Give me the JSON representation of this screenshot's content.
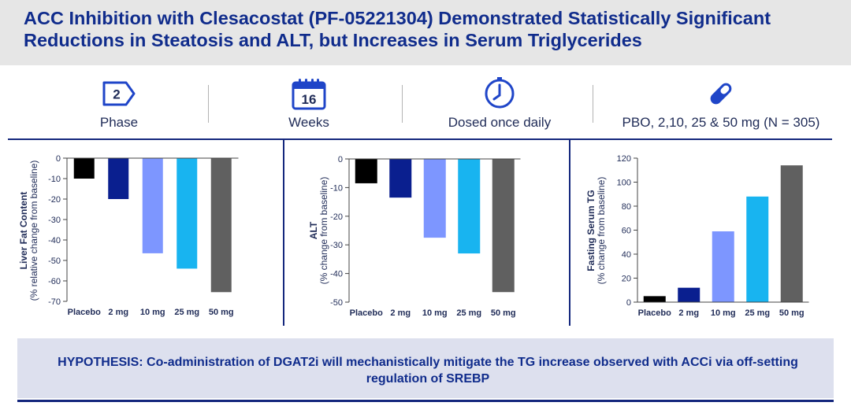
{
  "title": "ACC Inhibition with Clesacostat (PF-05221304) Demonstrated Statistically Significant Reductions in Steatosis and ALT, but Increases in Serum Triglycerides",
  "info": {
    "phase_value": "2",
    "phase_label": "Phase",
    "weeks_value": "16",
    "weeks_label": "Weeks",
    "dosing_label": "Dosed once daily",
    "groups_label": "PBO, 2,10, 25 & 50 mg (N = 305)"
  },
  "colors": {
    "title": "#102c8c",
    "accent": "#1f45c8",
    "placebo": "#000000",
    "2mg": "#0a1f8f",
    "10mg": "#7d96ff",
    "25mg": "#18b4f0",
    "50mg": "#606060",
    "hypothesis_bg": "#dde0ee"
  },
  "icons": [
    "phase-arrow-icon",
    "calendar-icon",
    "clock-icon",
    "pill-icon"
  ],
  "chart_data": [
    {
      "type": "bar",
      "ylabel_main": "Liver Fat Content",
      "ylabel_sub": "(% relative change from baseline)",
      "categories": [
        "Placebo",
        "2 mg",
        "10 mg",
        "25 mg",
        "50 mg"
      ],
      "values": [
        -10,
        -20,
        -46.5,
        -54,
        -65.5
      ],
      "ylim": [
        -70,
        0
      ],
      "yticks": [
        0,
        -10,
        -20,
        -30,
        -40,
        -50,
        -60,
        -70
      ]
    },
    {
      "type": "bar",
      "ylabel_main": "ALT",
      "ylabel_sub": "(% change from baseline)",
      "categories": [
        "Placebo",
        "2 mg",
        "10 mg",
        "25 mg",
        "50 mg"
      ],
      "values": [
        -8.5,
        -13.5,
        -27.5,
        -33,
        -46.5
      ],
      "ylim": [
        -50,
        0
      ],
      "yticks": [
        0,
        -10,
        -20,
        -30,
        -40,
        -50
      ]
    },
    {
      "type": "bar",
      "ylabel_main": "Fasting Serum TG",
      "ylabel_sub": "(% change from baseline)",
      "categories": [
        "Placebo",
        "2 mg",
        "10 mg",
        "25 mg",
        "50 mg"
      ],
      "values": [
        5,
        12,
        59,
        88,
        114
      ],
      "ylim": [
        0,
        120
      ],
      "yticks": [
        0,
        20,
        40,
        60,
        80,
        100,
        120
      ]
    }
  ],
  "hypothesis": "HYPOTHESIS: Co-administration of DGAT2i will mechanistically mitigate the TG increase observed with ACCi via off-setting regulation of SREBP"
}
